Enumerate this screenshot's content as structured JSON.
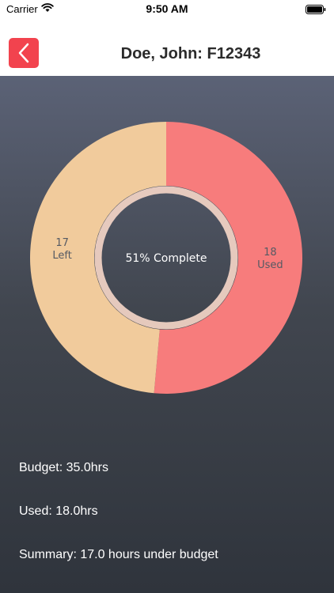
{
  "status_bar": {
    "carrier": "Carrier",
    "time": "9:50 AM"
  },
  "nav": {
    "title": "Doe, John: F12343"
  },
  "chart_data": {
    "type": "pie",
    "variant": "donut",
    "center_label": "51% Complete",
    "slices": [
      {
        "value": 18,
        "label": "Used",
        "color": "#f77c7c"
      },
      {
        "value": 17,
        "label": "Left",
        "color": "#f1cb9c"
      }
    ]
  },
  "info": {
    "budget": "Budget: 35.0hrs",
    "used": "Used: 18.0hrs",
    "summary": "Summary: 17.0 hours under budget"
  },
  "colors": {
    "accent": "#f2434e",
    "used": "#f77c7c",
    "left": "#f1cb9c"
  }
}
